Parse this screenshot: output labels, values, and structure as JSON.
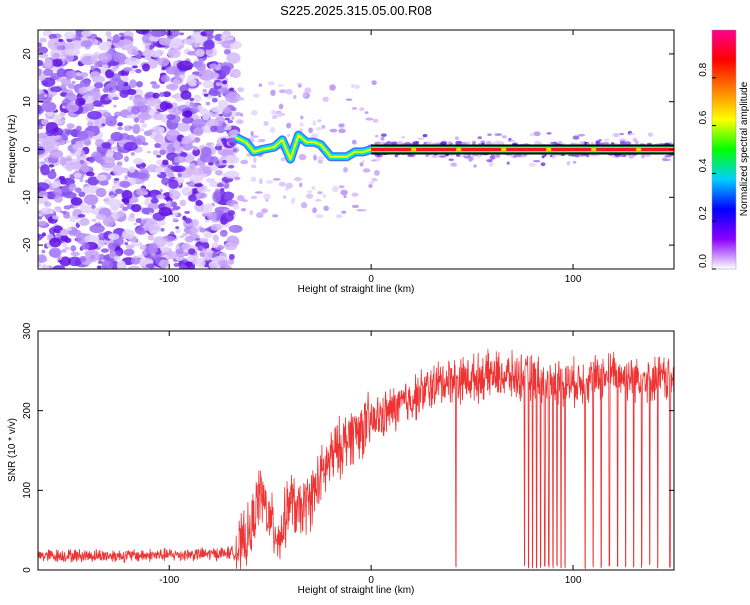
{
  "page_title": "S225.2025.315.05.00.R08",
  "chart_data": [
    {
      "type": "heatmap",
      "xlabel": "Height of straight line (km)",
      "ylabel": "Frequency (Hz)",
      "xlim": [
        -165,
        150
      ],
      "ylim": [
        -25,
        25
      ],
      "xticks": [
        -100,
        0,
        100
      ],
      "yticks": [
        -20,
        -10,
        0,
        10,
        20
      ],
      "xtick_labels": [
        "-100",
        "0",
        "100"
      ],
      "ytick_labels": [
        "-20",
        "-10",
        "0",
        "10",
        "20"
      ],
      "colorbar": {
        "label": "Normalized spectral amplitude",
        "range": [
          0,
          1
        ],
        "ticks": [
          0,
          0.2,
          0.4,
          0.6,
          0.8
        ],
        "tick_labels": [
          "0.0",
          "0.2",
          "0.4",
          "0.6",
          "0.8"
        ],
        "colors": [
          "#ffffff",
          "#8a00ff",
          "#0000ff",
          "#00d0ff",
          "#00ff00",
          "#ffff00",
          "#ff8000",
          "#ff0000",
          "#ff0090"
        ]
      },
      "noise_region_km": [
        -165,
        -67
      ],
      "carrier_line": {
        "x": [
          -67,
          -62,
          -58,
          -54,
          -48,
          -44,
          -40,
          -36,
          -32,
          -28,
          -25,
          -20,
          -16,
          -12,
          -8,
          -4,
          0,
          150
        ],
        "y": [
          2.5,
          1.5,
          -0.5,
          0.0,
          0.5,
          2.0,
          -2.0,
          3.0,
          1.5,
          1.5,
          1.0,
          -1.5,
          -1.5,
          -1.5,
          -0.5,
          -0.5,
          0.0,
          0.0
        ]
      }
    },
    {
      "type": "line",
      "xlabel": "Height of straight line (km)",
      "ylabel": "SNR (10 * v/v)",
      "xlim": [
        -165,
        150
      ],
      "ylim": [
        0,
        300
      ],
      "xticks": [
        -100,
        0,
        100
      ],
      "yticks": [
        0,
        100,
        200,
        300
      ],
      "xtick_labels": [
        "-100",
        "0",
        "100"
      ],
      "ytick_labels": [
        "0",
        "100",
        "200",
        "300"
      ],
      "color": "#ee3333",
      "series": [
        {
          "name": "SNR",
          "x": [
            -165,
            -140,
            -120,
            -100,
            -80,
            -67,
            -60,
            -55,
            -50,
            -45,
            -40,
            -36,
            -30,
            -20,
            -10,
            0,
            10,
            20,
            30,
            40,
            50,
            60,
            80,
            100,
            120,
            150
          ],
          "y": [
            18,
            18,
            18,
            19,
            20,
            22,
            45,
            100,
            60,
            40,
            90,
            70,
            90,
            140,
            170,
            185,
            200,
            215,
            230,
            240,
            240,
            245,
            240,
            235,
            245,
            240
          ]
        }
      ],
      "dropouts_km": [
        42,
        76,
        78,
        80,
        82,
        84,
        86,
        88,
        90,
        92,
        94,
        96,
        106,
        110,
        114,
        118,
        122,
        126,
        130,
        134,
        138,
        142,
        148
      ]
    }
  ]
}
